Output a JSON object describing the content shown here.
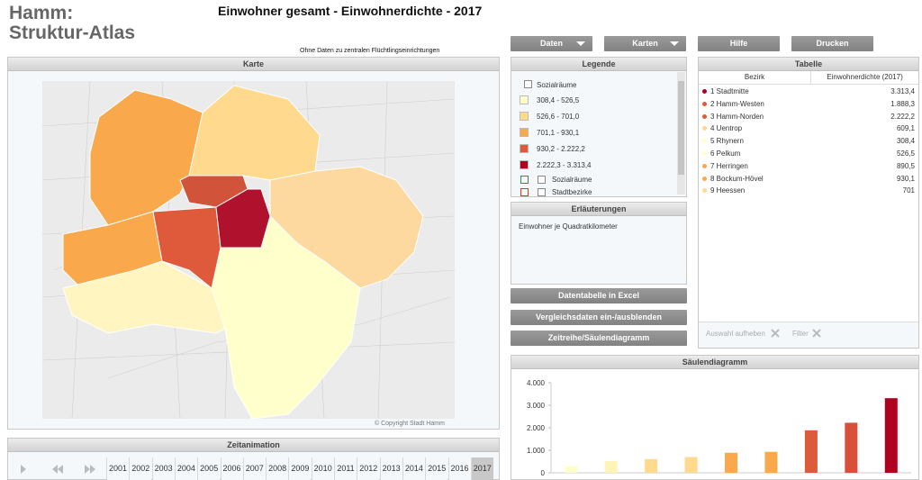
{
  "header": {
    "app": [
      "Hamm:",
      "Struktur-Atlas"
    ],
    "title": "Einwohner gesamt - Einwohnerdichte - 2017",
    "subtitle": "Ohne Daten zu zentralen Flüchtlingseinrichtungen"
  },
  "toolbar": [
    "Daten",
    "Karten",
    "Hilfe",
    "Drucken"
  ],
  "map": {
    "title": "Karte",
    "copyright": "© Copyright Stadt Hamm"
  },
  "legend": {
    "title": "Legende",
    "layer": "Sozialräume",
    "classes": [
      {
        "label": "308,4 - 526,5",
        "color": "#ffffcc"
      },
      {
        "label": "526,6 - 701,0",
        "color": "#fed98e"
      },
      {
        "label": "701,1 - 930,1",
        "color": "#f9a94b"
      },
      {
        "label": "930,2 - 2.222,2",
        "color": "#dd5a3a"
      },
      {
        "label": "2.222,3 - 3.313,4",
        "color": "#b00020"
      }
    ],
    "outlines": [
      {
        "label": "Sozialräume",
        "color": "#2a9a2a"
      },
      {
        "label": "Stadtbezirke",
        "color": "#e03030"
      }
    ]
  },
  "notes": {
    "title": "Erläuterungen",
    "text": "Einwohner je Quadratkilometer"
  },
  "actions": [
    "Datentabelle in Excel",
    "Vergleichsdaten ein-/ausblenden",
    "Zeitreihe/Säulendiagramm"
  ],
  "table": {
    "title": "Tabelle",
    "columns": [
      "Bezirk",
      "Einwohnerdichte (2017)"
    ],
    "rows": [
      [
        "1 Stadtmitte",
        "3.313,4"
      ],
      [
        "2 Hamm-Westen",
        "1.888,3"
      ],
      [
        "3 Hamm-Norden",
        "2.222,2"
      ],
      [
        "4 Uentrop",
        "609,1"
      ],
      [
        "5 Rhynern",
        "308,4"
      ],
      [
        "6 Pelkum",
        "526,5"
      ],
      [
        "7 Herringen",
        "890,5"
      ],
      [
        "8 Bockum-Hövel",
        "930,1"
      ],
      [
        "9 Heessen",
        "701"
      ]
    ],
    "row_colors": [
      "#b00020",
      "#dd5a3a",
      "#dd5a3a",
      "#fed98e",
      "#ffffcc",
      "#ffffcc",
      "#f9a94b",
      "#f9a94b",
      "#fed98e"
    ],
    "footer": [
      "Auswahl aufheben",
      "Filter"
    ]
  },
  "timeline": {
    "title": "Zeitanimation",
    "years": [
      "2001",
      "2002",
      "2003",
      "2004",
      "2005",
      "2006",
      "2007",
      "2008",
      "2009",
      "2010",
      "2011",
      "2012",
      "2013",
      "2014",
      "2015",
      "2016",
      "2017"
    ],
    "selected": 16
  },
  "chart_data": {
    "type": "bar",
    "title": "Säulendiagramm",
    "categories": [
      null,
      null,
      null,
      null,
      null,
      null,
      null,
      null,
      null
    ],
    "values": [
      308.4,
      526.5,
      609.1,
      701,
      890.5,
      930.1,
      1888.3,
      2222.2,
      3313.4
    ],
    "colors": [
      "#ffffcc",
      "#fff3b8",
      "#fed98e",
      "#fed98e",
      "#f9a94b",
      "#f9a94b",
      "#dd5a3a",
      "#d8503a",
      "#b00020"
    ],
    "ylim": [
      0,
      4000
    ],
    "yticks": [
      0,
      {
        "value": 1000,
        "label": "1.000"
      },
      {
        "value": 2000,
        "label": "2.000"
      },
      {
        "value": 3000,
        "label": "3.000"
      },
      {
        "value": 4000,
        "label": "4.000"
      }
    ],
    "grid": false
  }
}
